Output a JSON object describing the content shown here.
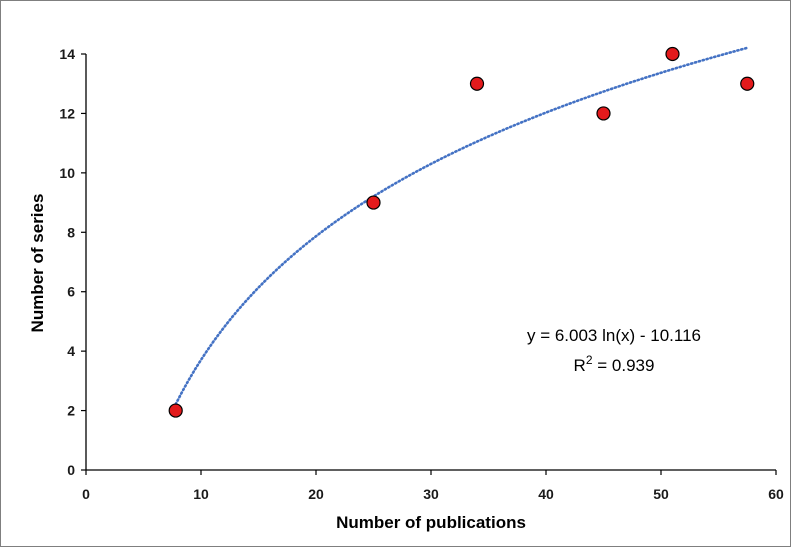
{
  "chart_data": {
    "type": "scatter",
    "xlabel": "Number of publications",
    "ylabel": "Number of series",
    "xlim": [
      0,
      60
    ],
    "ylim": [
      0,
      14
    ],
    "xticks": [
      0,
      10,
      20,
      30,
      40,
      50,
      60
    ],
    "yticks": [
      0,
      2,
      4,
      6,
      8,
      10,
      12,
      14
    ],
    "grid": false,
    "points": [
      {
        "x": 7.8,
        "y": 2
      },
      {
        "x": 25,
        "y": 9
      },
      {
        "x": 34,
        "y": 13
      },
      {
        "x": 45,
        "y": 12
      },
      {
        "x": 51,
        "y": 14
      },
      {
        "x": 57.5,
        "y": 13
      }
    ],
    "trendline": {
      "type": "logarithmic",
      "a": 6.003,
      "b": -10.116,
      "x_range": [
        7.8,
        57.5
      ],
      "style": "dotted"
    },
    "annotation": {
      "equation": "y = 6.003 ln(x) - 10.116",
      "r2_prefix": "R",
      "r2_sup": "2",
      "r2_value": " = 0.939"
    },
    "colors": {
      "marker_fill": "#e31a1c",
      "marker_stroke": "#000000",
      "trendline": "#4472c4"
    }
  }
}
